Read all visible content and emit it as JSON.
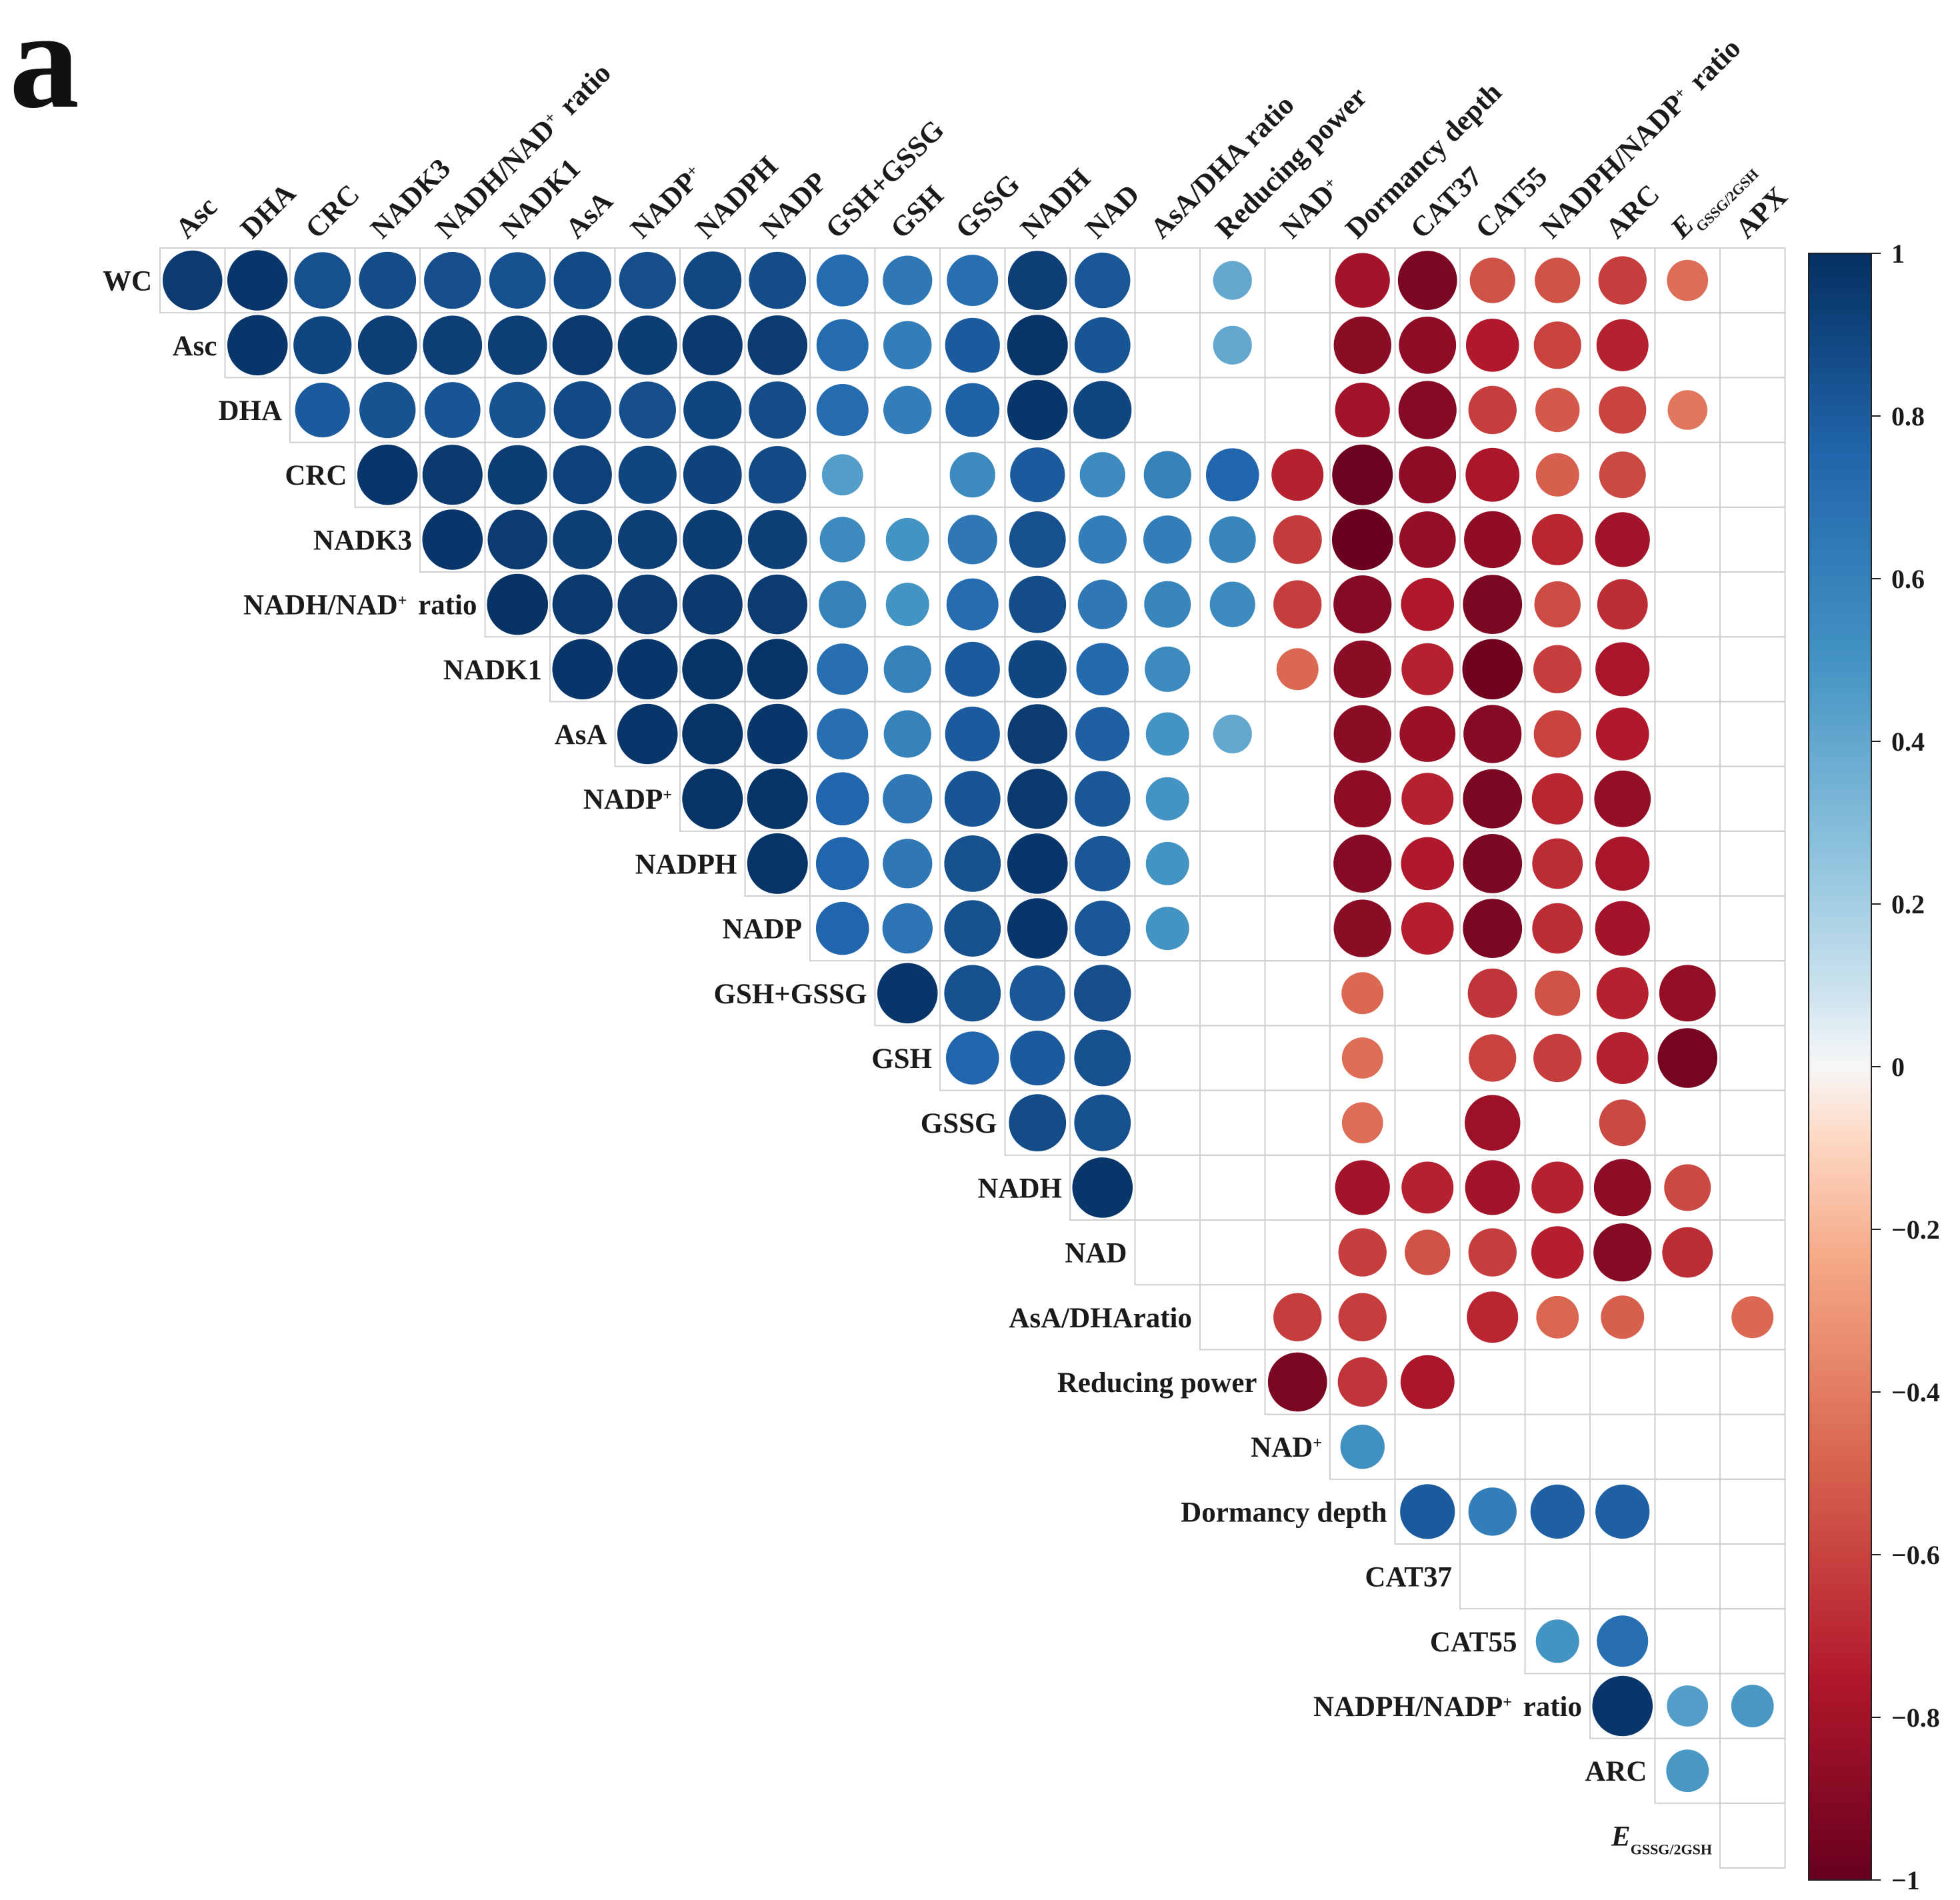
{
  "panel_label": "a",
  "chart_data": {
    "type": "heatmap",
    "subtype": "correlation-circles-upper-triangle",
    "title": "",
    "columns": [
      {
        "label": "Asc"
      },
      {
        "label": "DHA"
      },
      {
        "label": "CRC"
      },
      {
        "label": "NADK3"
      },
      {
        "label": "NADH/NAD",
        "sup": "+",
        "after": " ratio"
      },
      {
        "label": "NADK1"
      },
      {
        "label": "AsA"
      },
      {
        "label": "NADP",
        "sup": "+"
      },
      {
        "label": "NADPH"
      },
      {
        "label": "NADP"
      },
      {
        "label": "GSH+GSSG"
      },
      {
        "label": "GSH"
      },
      {
        "label": "GSSG"
      },
      {
        "label": "NADH"
      },
      {
        "label": "NAD"
      },
      {
        "label": "AsA/DHA ratio"
      },
      {
        "label": "Reducing power"
      },
      {
        "label": "NAD",
        "sup": "+"
      },
      {
        "label": "Dormancy depth"
      },
      {
        "label": "CAT37"
      },
      {
        "label": "CAT55"
      },
      {
        "label": "NADPH/NADP",
        "sup": "+",
        "after": " ratio"
      },
      {
        "label": "ARC"
      },
      {
        "label": "E",
        "sub": "GSSG/2GSH",
        "italic": true
      },
      {
        "label": "APX"
      }
    ],
    "rows": [
      {
        "label": "WC"
      },
      {
        "label": "Asc"
      },
      {
        "label": "DHA"
      },
      {
        "label": "CRC"
      },
      {
        "label": "NADK3"
      },
      {
        "label": "NADH/NAD",
        "sup": "+",
        "after": " ratio"
      },
      {
        "label": "NADK1"
      },
      {
        "label": "AsA"
      },
      {
        "label": "NADP",
        "sup": "+"
      },
      {
        "label": "NADPH"
      },
      {
        "label": "NADP"
      },
      {
        "label": "GSH+GSSG"
      },
      {
        "label": "GSH"
      },
      {
        "label": "GSSG"
      },
      {
        "label": "NADH"
      },
      {
        "label": "NAD"
      },
      {
        "label": "AsA/DHAratio"
      },
      {
        "label": "Reducing power"
      },
      {
        "label": "NAD",
        "sup": "+"
      },
      {
        "label": "Dormancy depth"
      },
      {
        "label": "CAT37"
      },
      {
        "label": "CAT55"
      },
      {
        "label": "NADPH/NADP",
        "sup": "+",
        "after": " ratio"
      },
      {
        "label": "ARC"
      },
      {
        "label": "E",
        "sub": "GSSG/2GSH",
        "italic": true
      }
    ],
    "values": [
      [
        0.95,
        0.97,
        0.85,
        0.87,
        0.86,
        0.85,
        0.88,
        0.86,
        0.89,
        0.87,
        0.72,
        0.65,
        0.7,
        0.93,
        0.82,
        null,
        0.4,
        null,
        -0.8,
        -0.93,
        -0.55,
        -0.55,
        -0.62,
        -0.45,
        null
      ],
      [
        null,
        0.97,
        0.9,
        0.93,
        0.93,
        0.93,
        0.96,
        0.94,
        0.96,
        0.95,
        0.72,
        0.62,
        0.8,
        0.98,
        0.83,
        null,
        0.4,
        null,
        -0.88,
        -0.87,
        -0.75,
        -0.6,
        -0.72,
        null,
        null
      ],
      [
        null,
        null,
        0.8,
        0.84,
        0.83,
        0.84,
        0.88,
        0.86,
        0.9,
        0.87,
        0.72,
        0.62,
        0.77,
        0.97,
        0.9,
        null,
        null,
        null,
        -0.8,
        -0.9,
        -0.62,
        -0.52,
        -0.6,
        -0.42,
        null
      ],
      [
        null,
        null,
        null,
        0.97,
        0.96,
        0.94,
        0.92,
        0.9,
        0.91,
        0.88,
        0.45,
        null,
        0.55,
        0.8,
        0.55,
        0.6,
        0.75,
        -0.72,
        -0.98,
        -0.87,
        -0.77,
        -0.5,
        -0.58,
        null,
        null
      ],
      [
        null,
        null,
        null,
        null,
        0.97,
        0.95,
        0.93,
        0.93,
        0.94,
        0.93,
        0.55,
        0.5,
        0.65,
        0.85,
        0.62,
        0.62,
        0.58,
        -0.63,
        -0.99,
        -0.85,
        -0.86,
        -0.7,
        -0.8,
        null,
        null
      ],
      [
        null,
        null,
        null,
        null,
        null,
        0.99,
        0.96,
        0.95,
        0.96,
        0.95,
        0.6,
        0.5,
        0.72,
        0.87,
        0.65,
        0.58,
        0.55,
        -0.62,
        -0.9,
        -0.75,
        -0.93,
        -0.57,
        -0.68,
        null,
        null
      ],
      [
        null,
        null,
        null,
        null,
        null,
        null,
        0.97,
        0.97,
        0.98,
        0.98,
        0.7,
        0.6,
        0.8,
        0.9,
        0.73,
        0.55,
        null,
        -0.47,
        -0.88,
        -0.72,
        -0.97,
        -0.62,
        -0.78,
        null,
        null
      ],
      [
        null,
        null,
        null,
        null,
        null,
        null,
        null,
        0.97,
        0.98,
        0.97,
        0.7,
        0.6,
        0.8,
        0.95,
        0.78,
        0.5,
        0.4,
        null,
        -0.88,
        -0.83,
        -0.9,
        -0.6,
        -0.75,
        null,
        null
      ],
      [
        null,
        null,
        null,
        null,
        null,
        null,
        null,
        null,
        0.98,
        0.98,
        0.75,
        0.65,
        0.83,
        0.96,
        0.82,
        0.5,
        null,
        null,
        -0.87,
        -0.72,
        -0.93,
        -0.7,
        -0.85,
        null,
        null
      ],
      [
        null,
        null,
        null,
        null,
        null,
        null,
        null,
        null,
        null,
        0.98,
        0.75,
        0.65,
        0.85,
        0.97,
        0.82,
        0.5,
        null,
        null,
        -0.9,
        -0.75,
        -0.93,
        -0.68,
        -0.78,
        null,
        null
      ],
      [
        null,
        null,
        null,
        null,
        null,
        null,
        null,
        null,
        null,
        null,
        0.75,
        0.67,
        0.85,
        0.97,
        0.82,
        0.5,
        null,
        null,
        -0.88,
        -0.73,
        -0.93,
        -0.68,
        -0.8,
        null,
        null
      ],
      [
        null,
        null,
        null,
        null,
        null,
        null,
        null,
        null,
        null,
        null,
        null,
        0.97,
        0.85,
        0.82,
        0.86,
        null,
        null,
        null,
        -0.47,
        null,
        -0.65,
        -0.55,
        -0.72,
        -0.85,
        null
      ],
      [
        null,
        null,
        null,
        null,
        null,
        null,
        null,
        null,
        null,
        null,
        null,
        null,
        0.75,
        0.8,
        0.85,
        null,
        null,
        null,
        -0.45,
        null,
        -0.6,
        -0.62,
        -0.72,
        -0.95,
        null
      ],
      [
        null,
        null,
        null,
        null,
        null,
        null,
        null,
        null,
        null,
        null,
        null,
        null,
        null,
        0.87,
        0.85,
        null,
        null,
        null,
        -0.45,
        null,
        -0.82,
        null,
        -0.58,
        null,
        null
      ],
      [
        null,
        null,
        null,
        null,
        null,
        null,
        null,
        null,
        null,
        null,
        null,
        null,
        null,
        null,
        0.97,
        null,
        null,
        null,
        -0.8,
        -0.72,
        -0.8,
        -0.72,
        -0.87,
        -0.58,
        null
      ],
      [
        null,
        null,
        null,
        null,
        null,
        null,
        null,
        null,
        null,
        null,
        null,
        null,
        null,
        null,
        null,
        null,
        null,
        null,
        -0.62,
        -0.55,
        -0.62,
        -0.73,
        -0.9,
        -0.68,
        null
      ],
      [
        null,
        null,
        null,
        null,
        null,
        null,
        null,
        null,
        null,
        null,
        null,
        null,
        null,
        null,
        null,
        null,
        null,
        -0.62,
        -0.62,
        null,
        -0.7,
        -0.48,
        -0.5,
        null,
        -0.47
      ],
      [
        null,
        null,
        null,
        null,
        null,
        null,
        null,
        null,
        null,
        null,
        null,
        null,
        null,
        null,
        null,
        null,
        null,
        -0.93,
        -0.65,
        -0.77,
        null,
        null,
        null,
        null,
        null
      ],
      [
        null,
        null,
        null,
        null,
        null,
        null,
        null,
        null,
        null,
        null,
        null,
        null,
        null,
        null,
        null,
        null,
        null,
        null,
        0.52,
        null,
        null,
        null,
        null,
        null,
        null
      ],
      [
        null,
        null,
        null,
        null,
        null,
        null,
        null,
        null,
        null,
        null,
        null,
        null,
        null,
        null,
        null,
        null,
        null,
        null,
        null,
        0.8,
        0.62,
        0.78,
        0.78,
        null,
        null
      ],
      [
        null,
        null,
        null,
        null,
        null,
        null,
        null,
        null,
        null,
        null,
        null,
        null,
        null,
        null,
        null,
        null,
        null,
        null,
        null,
        null,
        null,
        null,
        null,
        null,
        null
      ],
      [
        null,
        null,
        null,
        null,
        null,
        null,
        null,
        null,
        null,
        null,
        null,
        null,
        null,
        null,
        null,
        null,
        null,
        null,
        null,
        null,
        null,
        0.5,
        0.7,
        null,
        null
      ],
      [
        null,
        null,
        null,
        null,
        null,
        null,
        null,
        null,
        null,
        null,
        null,
        null,
        null,
        null,
        null,
        null,
        null,
        null,
        null,
        null,
        null,
        null,
        0.97,
        0.45,
        0.48
      ],
      [
        null,
        null,
        null,
        null,
        null,
        null,
        null,
        null,
        null,
        null,
        null,
        null,
        null,
        null,
        null,
        null,
        null,
        null,
        null,
        null,
        null,
        null,
        null,
        0.48,
        null
      ],
      [
        null,
        null,
        null,
        null,
        null,
        null,
        null,
        null,
        null,
        null,
        null,
        null,
        null,
        null,
        null,
        null,
        null,
        null,
        null,
        null,
        null,
        null,
        null,
        null,
        null
      ]
    ],
    "colorbar": {
      "range": [
        -1,
        1
      ],
      "ticks": [
        1,
        0.8,
        0.6,
        0.4,
        0.2,
        0,
        -0.2,
        -0.4,
        -0.6,
        -0.8,
        -1
      ],
      "tick_labels": [
        "1",
        "0.8",
        "0.6",
        "0.4",
        "0.2",
        "0",
        "−0.2",
        "−0.4",
        "−0.6",
        "−0.8",
        "−1"
      ],
      "colors": [
        {
          "v": -1.0,
          "c": "#67001f"
        },
        {
          "v": -0.75,
          "c": "#b2182b"
        },
        {
          "v": -0.5,
          "c": "#d6604d"
        },
        {
          "v": -0.25,
          "c": "#f4a582"
        },
        {
          "v": -0.08,
          "c": "#fddbc7"
        },
        {
          "v": 0.0,
          "c": "#f7f7f7"
        },
        {
          "v": 0.08,
          "c": "#d1e5f0"
        },
        {
          "v": 0.25,
          "c": "#92c5de"
        },
        {
          "v": 0.5,
          "c": "#4393c3"
        },
        {
          "v": 0.75,
          "c": "#2166ac"
        },
        {
          "v": 1.0,
          "c": "#053061"
        }
      ]
    },
    "grid": true,
    "legend": "right"
  }
}
